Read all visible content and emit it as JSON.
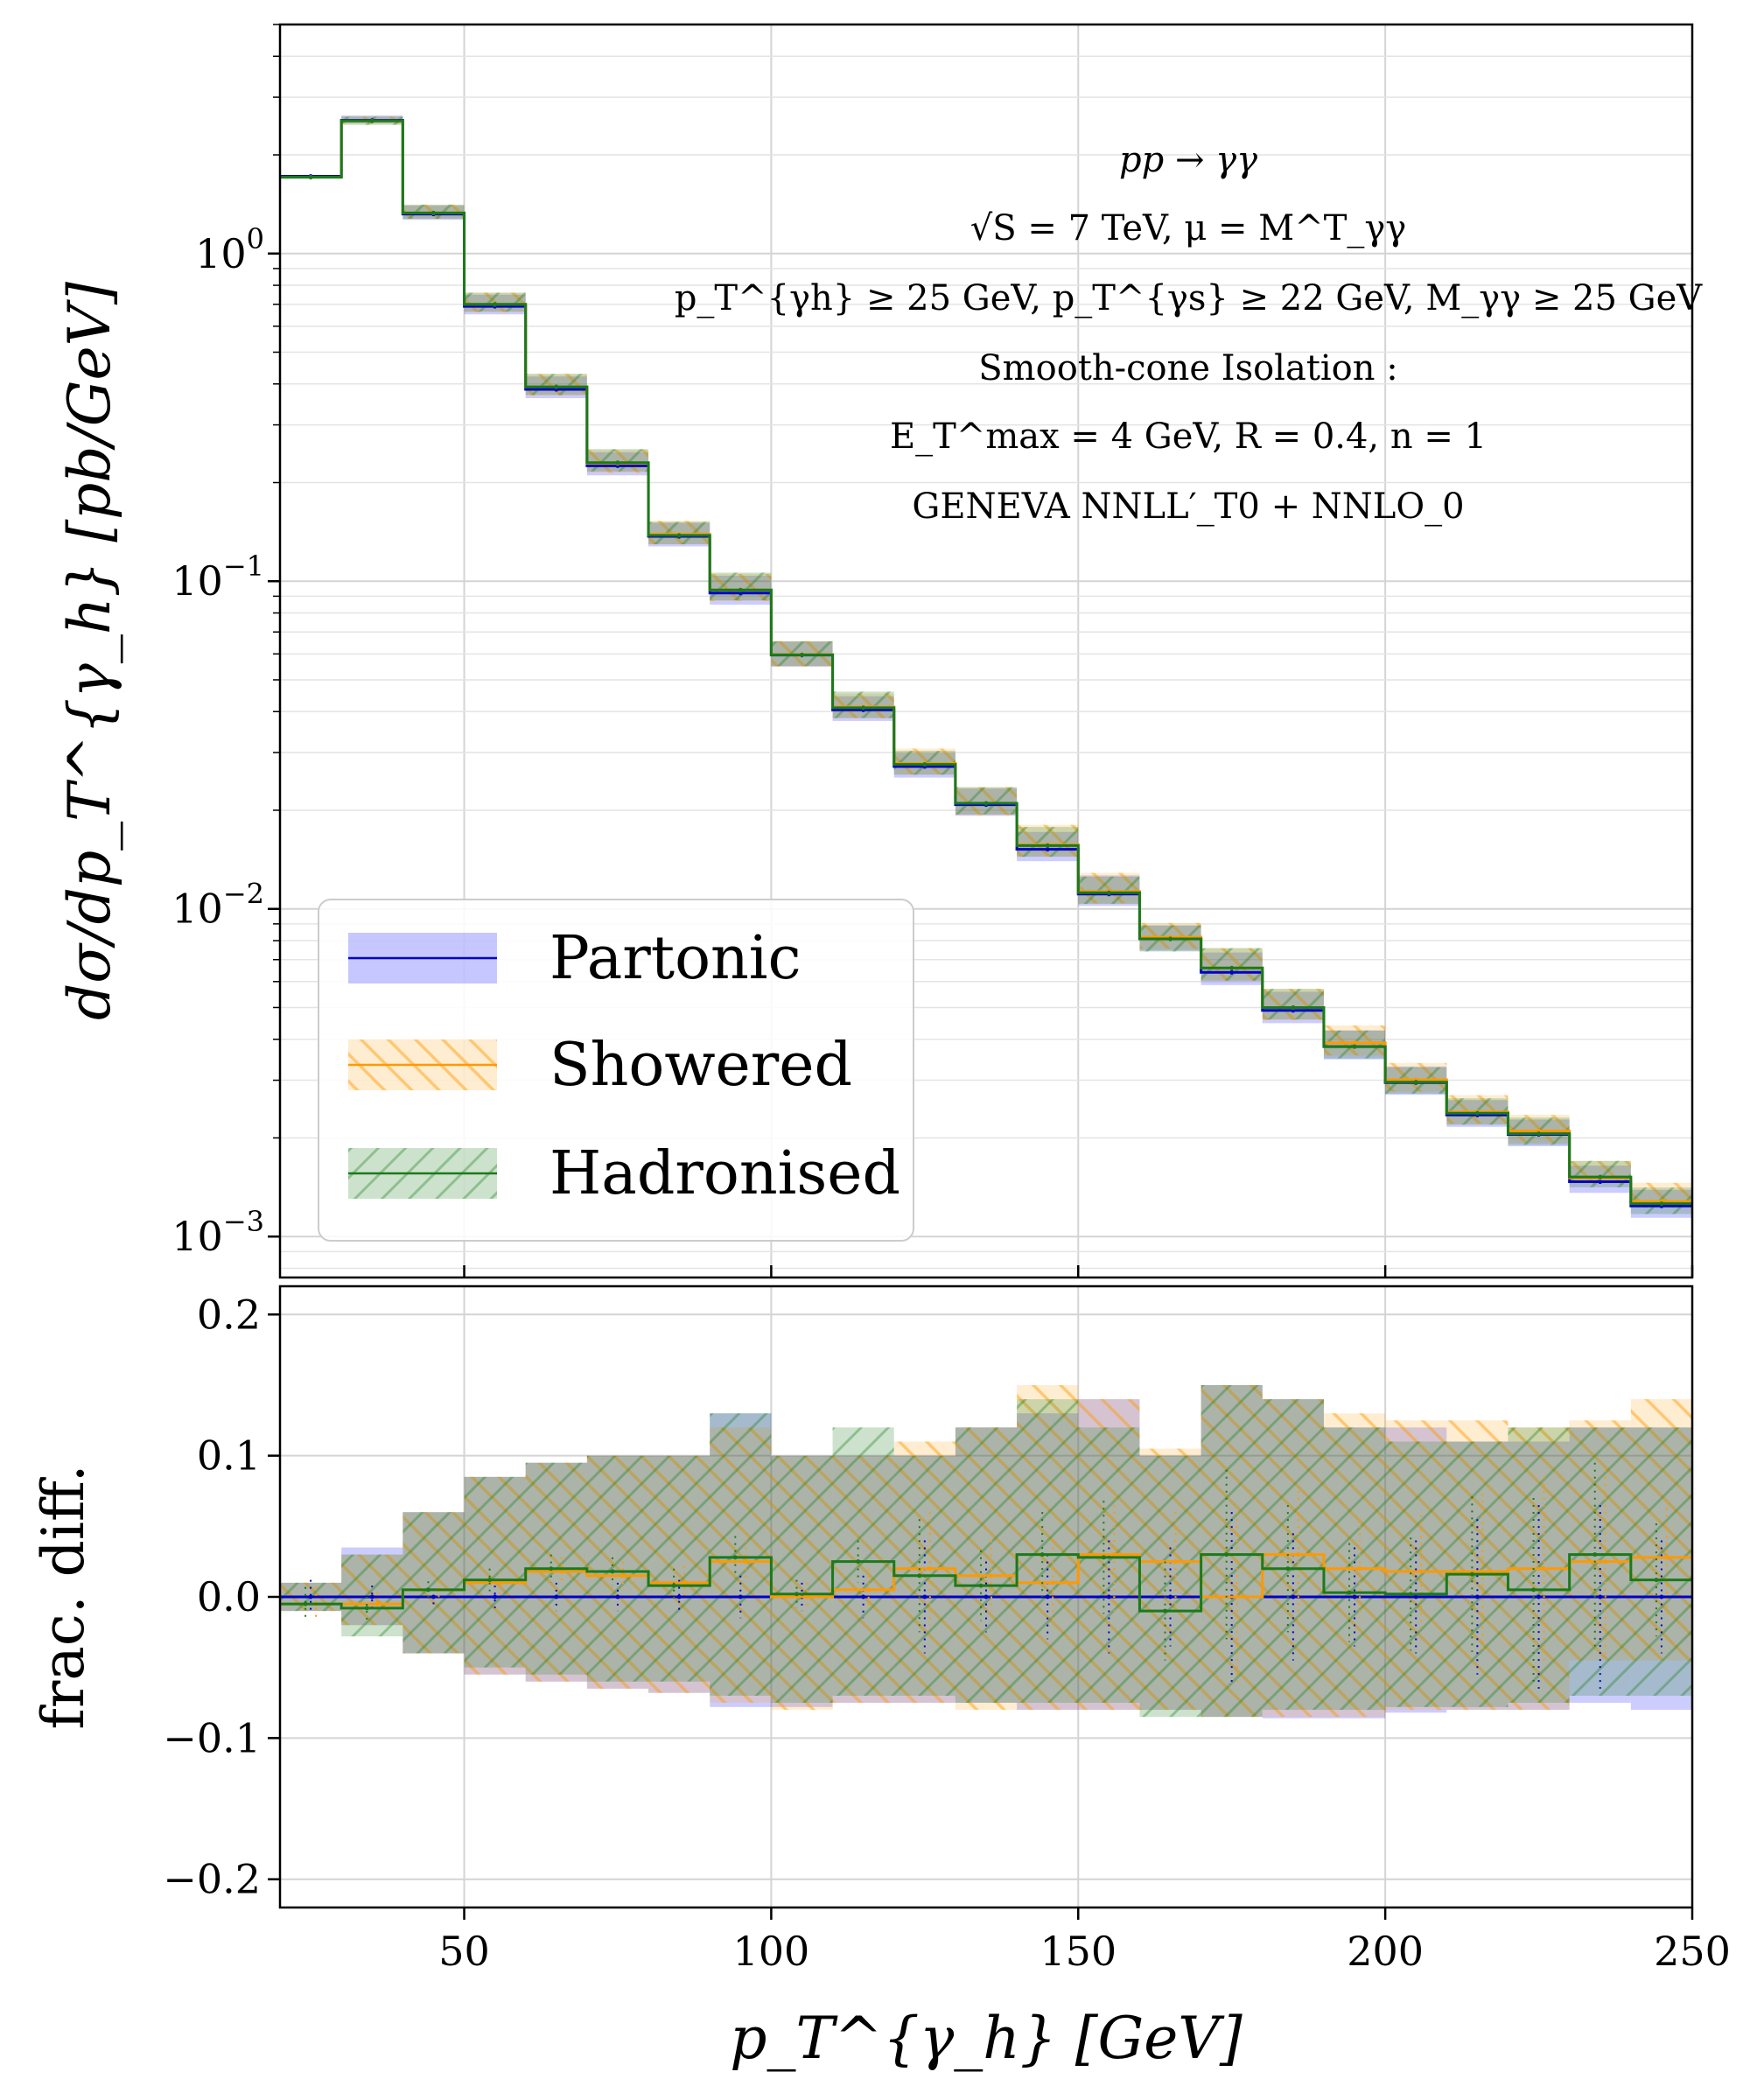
{
  "chart_data": [
    {
      "type": "line",
      "panel": "main",
      "scale": "log",
      "ylabel": "dσ/dp_T^{γ_h}   [pb/GeV]",
      "xlim": [
        20,
        250
      ],
      "ylim": [
        0.00075,
        5.0
      ],
      "yticks": [
        {
          "value": 1.0,
          "base": "10",
          "exp": "0"
        },
        {
          "value": 0.1,
          "base": "10",
          "exp": "−1"
        },
        {
          "value": 0.01,
          "base": "10",
          "exp": "−2"
        },
        {
          "value": 0.001,
          "base": "10",
          "exp": "−3"
        }
      ],
      "bin_edges": [
        20,
        30,
        40,
        50,
        60,
        70,
        80,
        90,
        100,
        110,
        120,
        130,
        140,
        150,
        160,
        170,
        180,
        190,
        200,
        210,
        220,
        230,
        240,
        250
      ],
      "series": [
        {
          "name": "Partonic",
          "color": "#0000cc",
          "values": [
            1.72,
            2.55,
            1.32,
            0.69,
            0.385,
            0.225,
            0.137,
            0.092,
            0.0595,
            0.0405,
            0.0272,
            0.0208,
            0.0152,
            0.0111,
            0.0081,
            0.0064,
            0.0049,
            0.0038,
            0.00295,
            0.00235,
            0.00205,
            0.00147,
            0.00124
          ]
        },
        {
          "name": "Showered",
          "color": "#ff9900",
          "values": [
            1.71,
            2.54,
            1.33,
            0.7,
            0.392,
            0.229,
            0.139,
            0.094,
            0.0597,
            0.0413,
            0.0278,
            0.021,
            0.0157,
            0.0113,
            0.0082,
            0.0066,
            0.005,
            0.0039,
            0.00301,
            0.0024,
            0.0021,
            0.00151,
            0.00128
          ]
        },
        {
          "name": "Hadronised",
          "color": "#1a7a1a",
          "values": [
            1.71,
            2.54,
            1.33,
            0.7,
            0.392,
            0.23,
            0.138,
            0.094,
            0.0596,
            0.0411,
            0.0276,
            0.021,
            0.0156,
            0.0112,
            0.0081,
            0.0066,
            0.005,
            0.0038,
            0.00296,
            0.00238,
            0.00206,
            0.00152,
            0.00126
          ]
        }
      ],
      "band_rel": {
        "Partonic": {
          "lo": [
            -0.01,
            -0.02,
            -0.04,
            -0.055,
            -0.06,
            -0.065,
            -0.068,
            -0.078,
            -0.078,
            -0.075,
            -0.075,
            -0.075,
            -0.08,
            -0.08,
            -0.08,
            -0.085,
            -0.086,
            -0.086,
            -0.082,
            -0.08,
            -0.08,
            -0.075,
            -0.08
          ],
          "hi": [
            0.01,
            0.035,
            0.06,
            0.085,
            0.095,
            0.1,
            0.1,
            0.13,
            0.1,
            0.1,
            0.1,
            0.12,
            0.13,
            0.14,
            0.1,
            0.15,
            0.14,
            0.12,
            0.12,
            0.11,
            0.11,
            0.12,
            0.12
          ]
        },
        "Showered": {
          "lo": [
            -0.01,
            -0.02,
            -0.04,
            -0.055,
            -0.06,
            -0.065,
            -0.068,
            -0.075,
            -0.08,
            -0.075,
            -0.075,
            -0.08,
            -0.08,
            -0.08,
            -0.08,
            -0.085,
            -0.085,
            -0.085,
            -0.08,
            -0.08,
            -0.08,
            -0.045,
            -0.045
          ],
          "hi": [
            0.01,
            0.03,
            0.06,
            0.085,
            0.095,
            0.1,
            0.1,
            0.12,
            0.1,
            0.1,
            0.11,
            0.12,
            0.15,
            0.14,
            0.105,
            0.15,
            0.14,
            0.13,
            0.125,
            0.125,
            0.12,
            0.125,
            0.14
          ]
        },
        "Hadronised": {
          "lo": [
            -0.01,
            -0.028,
            -0.04,
            -0.05,
            -0.055,
            -0.06,
            -0.06,
            -0.07,
            -0.075,
            -0.07,
            -0.07,
            -0.075,
            -0.075,
            -0.075,
            -0.085,
            -0.085,
            -0.08,
            -0.08,
            -0.078,
            -0.078,
            -0.075,
            -0.07,
            -0.07
          ],
          "hi": [
            0.01,
            0.03,
            0.06,
            0.085,
            0.095,
            0.1,
            0.1,
            0.13,
            0.1,
            0.12,
            0.1,
            0.12,
            0.14,
            0.12,
            0.1,
            0.15,
            0.14,
            0.12,
            0.11,
            0.11,
            0.12,
            0.12,
            0.12
          ]
        }
      },
      "annotations": [
        {
          "id": "process",
          "text": "pp → γγ"
        },
        {
          "id": "energy",
          "text": "√S = 7 TeV,  μ = M^T_γγ"
        },
        {
          "id": "cuts",
          "text": "p_T^{γh} ≥ 25 GeV,  p_T^{γs} ≥ 22 GeV,  M_γγ ≥ 25 GeV"
        },
        {
          "id": "isolation",
          "text": "Smooth-cone Isolation :"
        },
        {
          "id": "iso-params",
          "text": "E_T^max = 4 GeV,   R = 0.4,  n = 1"
        },
        {
          "id": "generator",
          "text": "GENEVA   NNLL′_T0 + NNLO_0"
        }
      ],
      "legend": {
        "position": "lower-left",
        "entries": [
          "Partonic",
          "Showered",
          "Hadronised"
        ]
      }
    },
    {
      "type": "line",
      "panel": "ratio",
      "ylabel": "frac. diff.",
      "xlabel": "p_T^{γ_h}   [GeV]",
      "xlim": [
        20,
        250
      ],
      "ylim": [
        -0.22,
        0.22
      ],
      "xticks": [
        50,
        100,
        150,
        200,
        250
      ],
      "yticks": [
        {
          "value": 0.2,
          "label": "0.2"
        },
        {
          "value": 0.1,
          "label": "0.1"
        },
        {
          "value": 0.0,
          "label": "0.0"
        },
        {
          "value": -0.1,
          "label": "−0.1"
        },
        {
          "value": -0.2,
          "label": "−0.2"
        }
      ],
      "series": [
        {
          "name": "Partonic",
          "color": "#0000cc",
          "values": [
            0,
            0,
            0,
            0,
            0,
            0,
            0,
            0,
            0,
            0,
            0,
            0,
            0,
            0,
            0,
            0,
            0,
            0,
            0,
            0,
            0,
            0,
            0
          ],
          "errors": [
            0.012,
            0.008,
            0.006,
            0.008,
            0.01,
            0.01,
            0.012,
            0.015,
            0.01,
            0.015,
            0.04,
            0.025,
            0.03,
            0.04,
            0.035,
            0.06,
            0.045,
            0.035,
            0.04,
            0.055,
            0.065,
            0.065,
            0.04
          ]
        },
        {
          "name": "Showered",
          "color": "#ff9900",
          "values": [
            -0.005,
            -0.005,
            0.005,
            0.01,
            0.018,
            0.015,
            0.01,
            0.025,
            0.0,
            0.005,
            0.02,
            0.015,
            0.01,
            0.03,
            0.025,
            0.0,
            0.03,
            0.02,
            0.018,
            0.018,
            0.02,
            0.025,
            0.028
          ],
          "errors": [
            0.012,
            0.008,
            0.006,
            0.008,
            0.01,
            0.01,
            0.012,
            0.015,
            0.01,
            0.015,
            0.04,
            0.025,
            0.03,
            0.04,
            0.035,
            0.06,
            0.045,
            0.035,
            0.04,
            0.055,
            0.065,
            0.065,
            0.04
          ]
        },
        {
          "name": "Hadronised",
          "color": "#1a7a1a",
          "values": [
            -0.005,
            -0.008,
            0.005,
            0.012,
            0.02,
            0.018,
            0.008,
            0.028,
            0.002,
            0.025,
            0.015,
            0.008,
            0.03,
            0.028,
            -0.01,
            0.03,
            0.02,
            0.003,
            0.002,
            0.016,
            0.005,
            0.03,
            0.012
          ],
          "errors": [
            0.012,
            0.008,
            0.006,
            0.008,
            0.01,
            0.01,
            0.012,
            0.015,
            0.01,
            0.015,
            0.04,
            0.025,
            0.03,
            0.04,
            0.035,
            0.06,
            0.045,
            0.035,
            0.04,
            0.055,
            0.065,
            0.065,
            0.04
          ]
        }
      ]
    }
  ]
}
